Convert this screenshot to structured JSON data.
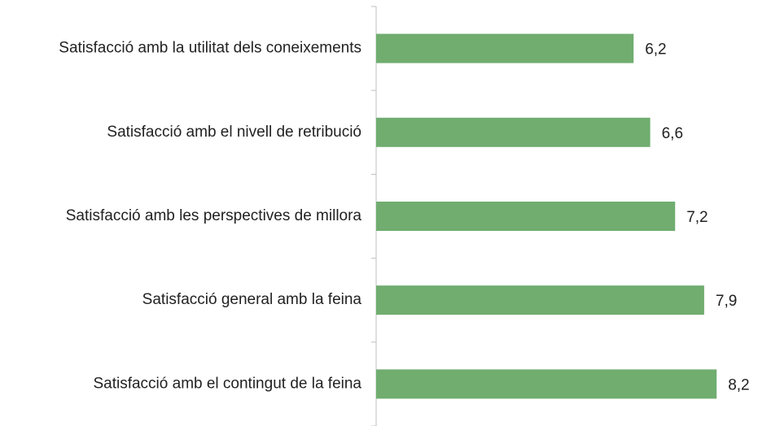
{
  "chart_data": {
    "type": "bar",
    "orientation": "horizontal",
    "categories": [
      "Satisfacció amb la utilitat dels coneixements",
      "Satisfacció amb el nivell de retribució",
      "Satisfacció amb les perspectives de millora",
      "Satisfacció general amb la feina",
      "Satisfacció amb el contingut de la feina"
    ],
    "values": [
      6.2,
      6.6,
      7.2,
      7.9,
      8.2
    ],
    "value_labels": [
      "6,2",
      "6,6",
      "7,2",
      "7,9",
      "8,2"
    ],
    "color": "#70ad6f"
  }
}
